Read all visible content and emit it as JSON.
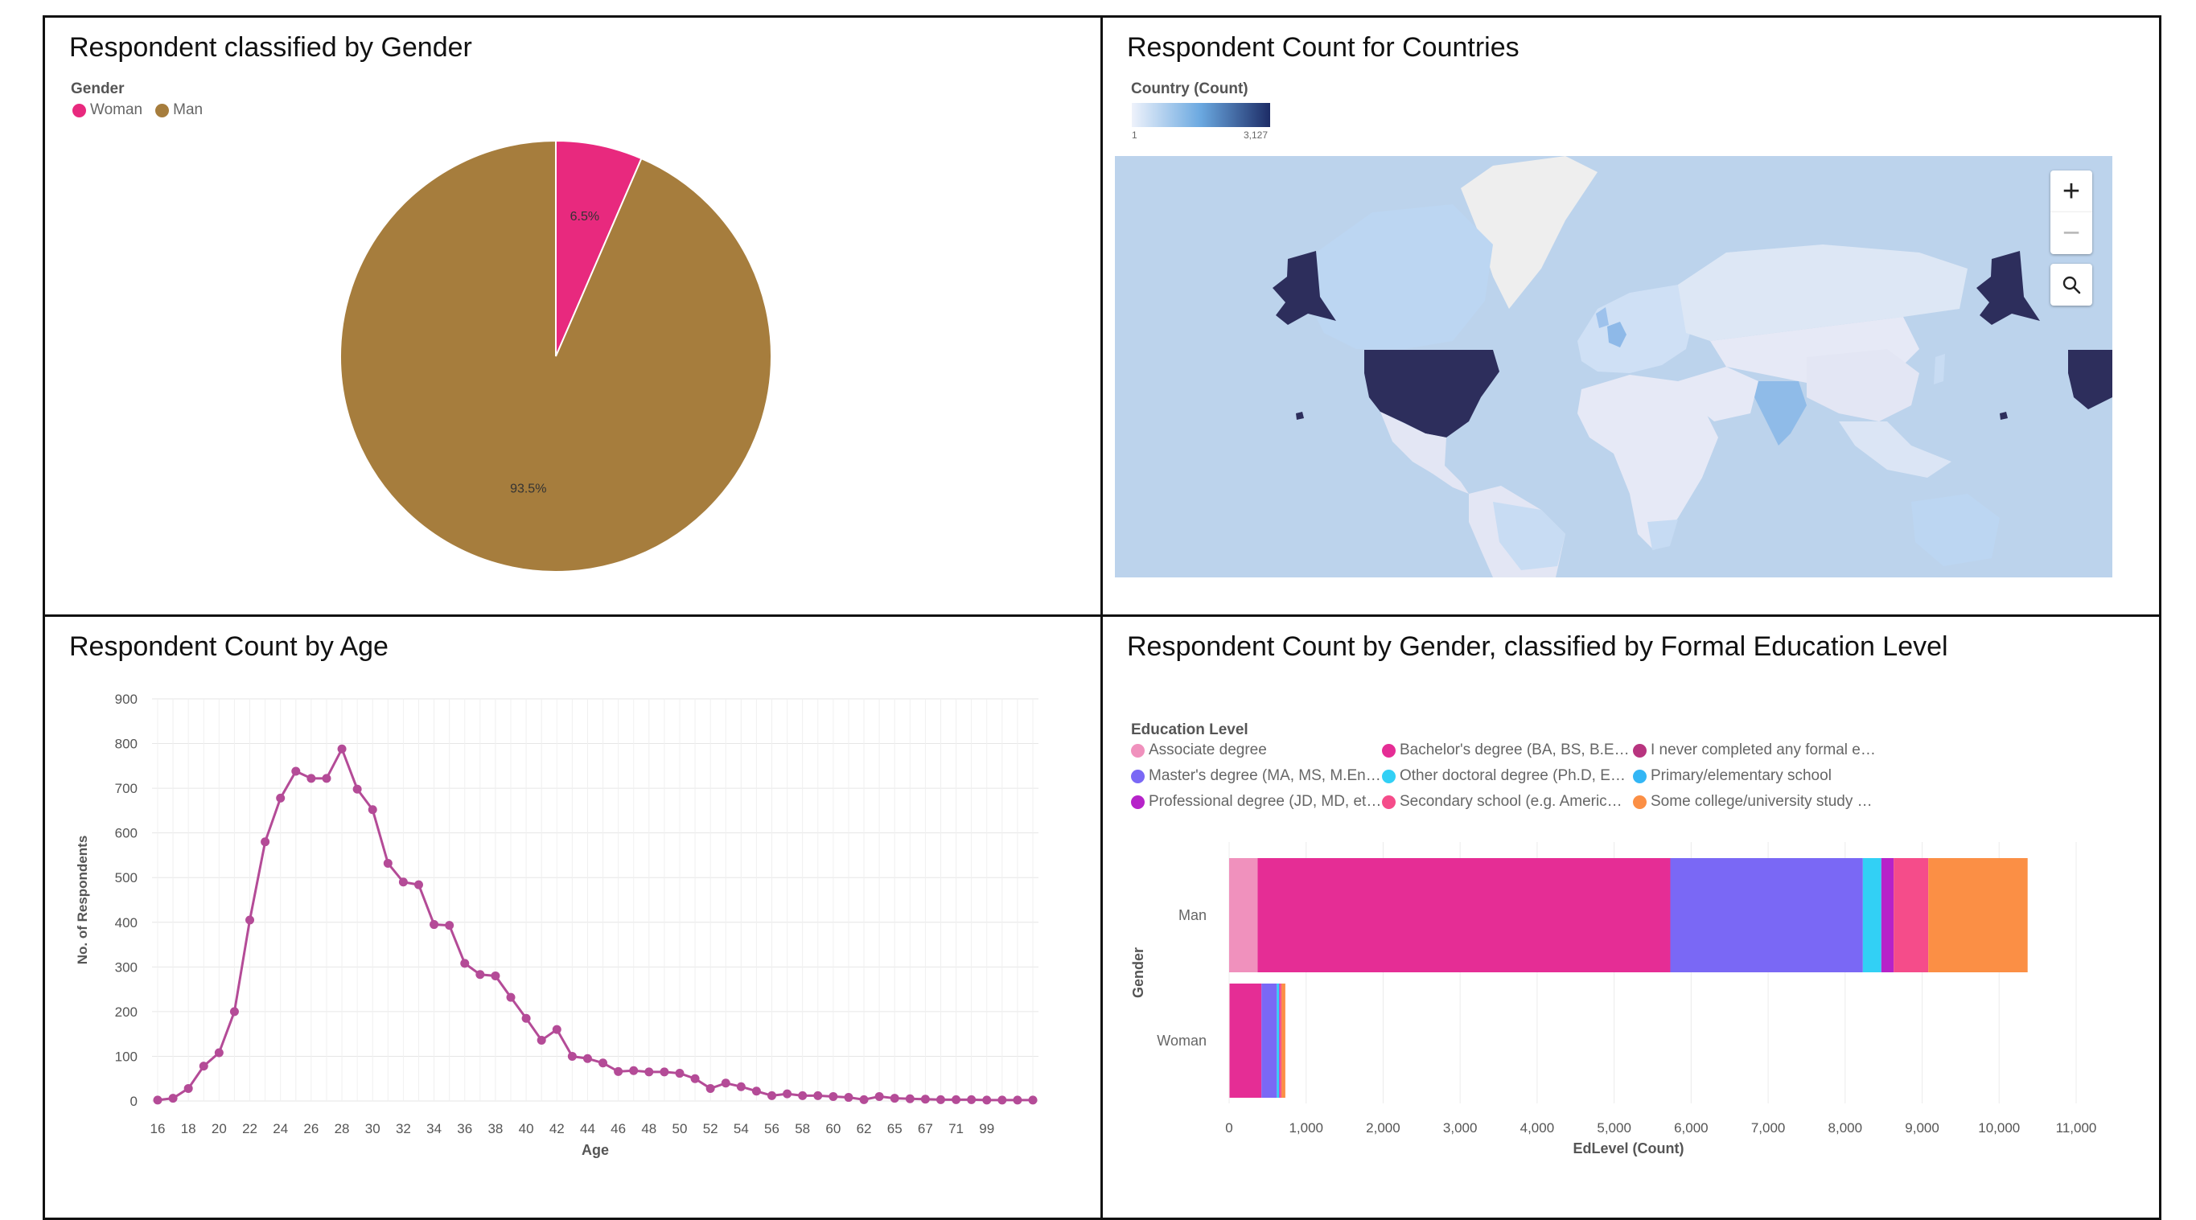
{
  "panels": {
    "gender": {
      "title": "Respondent classified by Gender",
      "legend_title": "Gender",
      "legend": [
        {
          "label": "Woman",
          "color": "#e8297e"
        },
        {
          "label": "Man",
          "color": "#a67d3d"
        }
      ]
    },
    "countries": {
      "title": "Respondent Count for Countries",
      "legend_title": "Country (Count)",
      "scale_min": "1",
      "scale_max": "3,127",
      "zoom_in_label": "+",
      "zoom_out_label": "−",
      "colors": {
        "ocean": "#bcd3ec",
        "low": "#e6e9f6",
        "mid": "#bcd6f2",
        "high": "#2d2e5c"
      }
    },
    "age": {
      "title": "Respondent Count by Age"
    },
    "education": {
      "title": "Respondent Count by Gender, classified by Formal Education Level",
      "legend_title": "Education Level",
      "legend": [
        {
          "label": "Associate degree",
          "color": "#f091bd"
        },
        {
          "label": "Bachelor's degree (BA, BS, B.E…",
          "color": "#e52d95"
        },
        {
          "label": "I never completed any formal e…",
          "color": "#b8347f"
        },
        {
          "label": "Master's degree (MA, MS, M.En…",
          "color": "#7a68f5"
        },
        {
          "label": "Other doctoral degree (Ph.D, E…",
          "color": "#32d0f5"
        },
        {
          "label": "Primary/elementary school",
          "color": "#33b6f5"
        },
        {
          "label": "Professional degree (JD, MD, et…",
          "color": "#b623c9"
        },
        {
          "label": "Secondary school (e.g. Americ…",
          "color": "#f54c8a"
        },
        {
          "label": "Some college/university study …",
          "color": "#fb8f45"
        }
      ]
    }
  },
  "chart_data": [
    {
      "type": "pie",
      "title": "Respondent classified by Gender",
      "legend_title": "Gender",
      "labels": [
        "Woman",
        "Man"
      ],
      "values": [
        6.5,
        93.5
      ],
      "value_labels": [
        "6.5%",
        "93.5%"
      ],
      "colors": [
        "#e8297e",
        "#a67d3d"
      ]
    },
    {
      "type": "line",
      "title": "Respondent Count by Age",
      "xlabel": "Age",
      "ylabel": "No. of Respondents",
      "ylim": [
        0,
        900
      ],
      "yticks": [
        "0",
        "100",
        "200",
        "300",
        "400",
        "500",
        "600",
        "700",
        "800",
        "900"
      ],
      "xtick_labels": [
        "16",
        "18",
        "20",
        "22",
        "24",
        "26",
        "28",
        "30",
        "32",
        "34",
        "36",
        "38",
        "40",
        "42",
        "44",
        "46",
        "48",
        "50",
        "52",
        "54",
        "56",
        "58",
        "60",
        "62",
        "65",
        "67",
        "71",
        "99"
      ],
      "grid": true,
      "color": "#b44b97",
      "values": [
        2,
        6,
        28,
        78,
        108,
        200,
        405,
        580,
        678,
        738,
        722,
        722,
        788,
        698,
        652,
        532,
        490,
        484,
        395,
        393,
        308,
        283,
        280,
        232,
        185,
        136,
        160,
        100,
        95,
        85,
        66,
        68,
        65,
        65,
        62,
        50,
        28,
        40,
        32,
        22,
        12,
        16,
        12,
        12,
        10,
        8,
        3,
        10,
        6,
        5,
        4,
        3,
        3,
        3,
        2,
        2,
        2,
        2
      ]
    },
    {
      "type": "bar",
      "orientation": "horizontal",
      "stacked": true,
      "title": "Respondent Count by Gender, classified by Formal Education Level",
      "xlabel": "EdLevel (Count)",
      "ylabel": "Gender",
      "categories": [
        "Man",
        "Woman"
      ],
      "xlim": [
        0,
        11000
      ],
      "xticks": [
        "0",
        "1,000",
        "2,000",
        "3,000",
        "4,000",
        "5,000",
        "6,000",
        "7,000",
        "8,000",
        "9,000",
        "10,000",
        "11,000"
      ],
      "legend_title": "Education Level",
      "series": [
        {
          "name": "Associate degree",
          "values": [
            370,
            10
          ]
        },
        {
          "name": "Bachelor's degree (BA, BS, B.E…",
          "values": [
            5360,
            410
          ]
        },
        {
          "name": "Master's degree (MA, MS, M.En…",
          "values": [
            2500,
            200
          ]
        },
        {
          "name": "Other doctoral degree (Ph.D, E…",
          "values": [
            240,
            30
          ]
        },
        {
          "name": "Professional degree (JD, MD, et…",
          "values": [
            160,
            10
          ]
        },
        {
          "name": "Secondary school (e.g. Americ…",
          "values": [
            450,
            20
          ]
        },
        {
          "name": "Some college/university study …",
          "values": [
            1290,
            50
          ]
        }
      ],
      "series_colors": [
        "#f091bd",
        "#e52d95",
        "#7a68f5",
        "#32d0f5",
        "#b623c9",
        "#f54c8a",
        "#fb8f45"
      ]
    }
  ]
}
